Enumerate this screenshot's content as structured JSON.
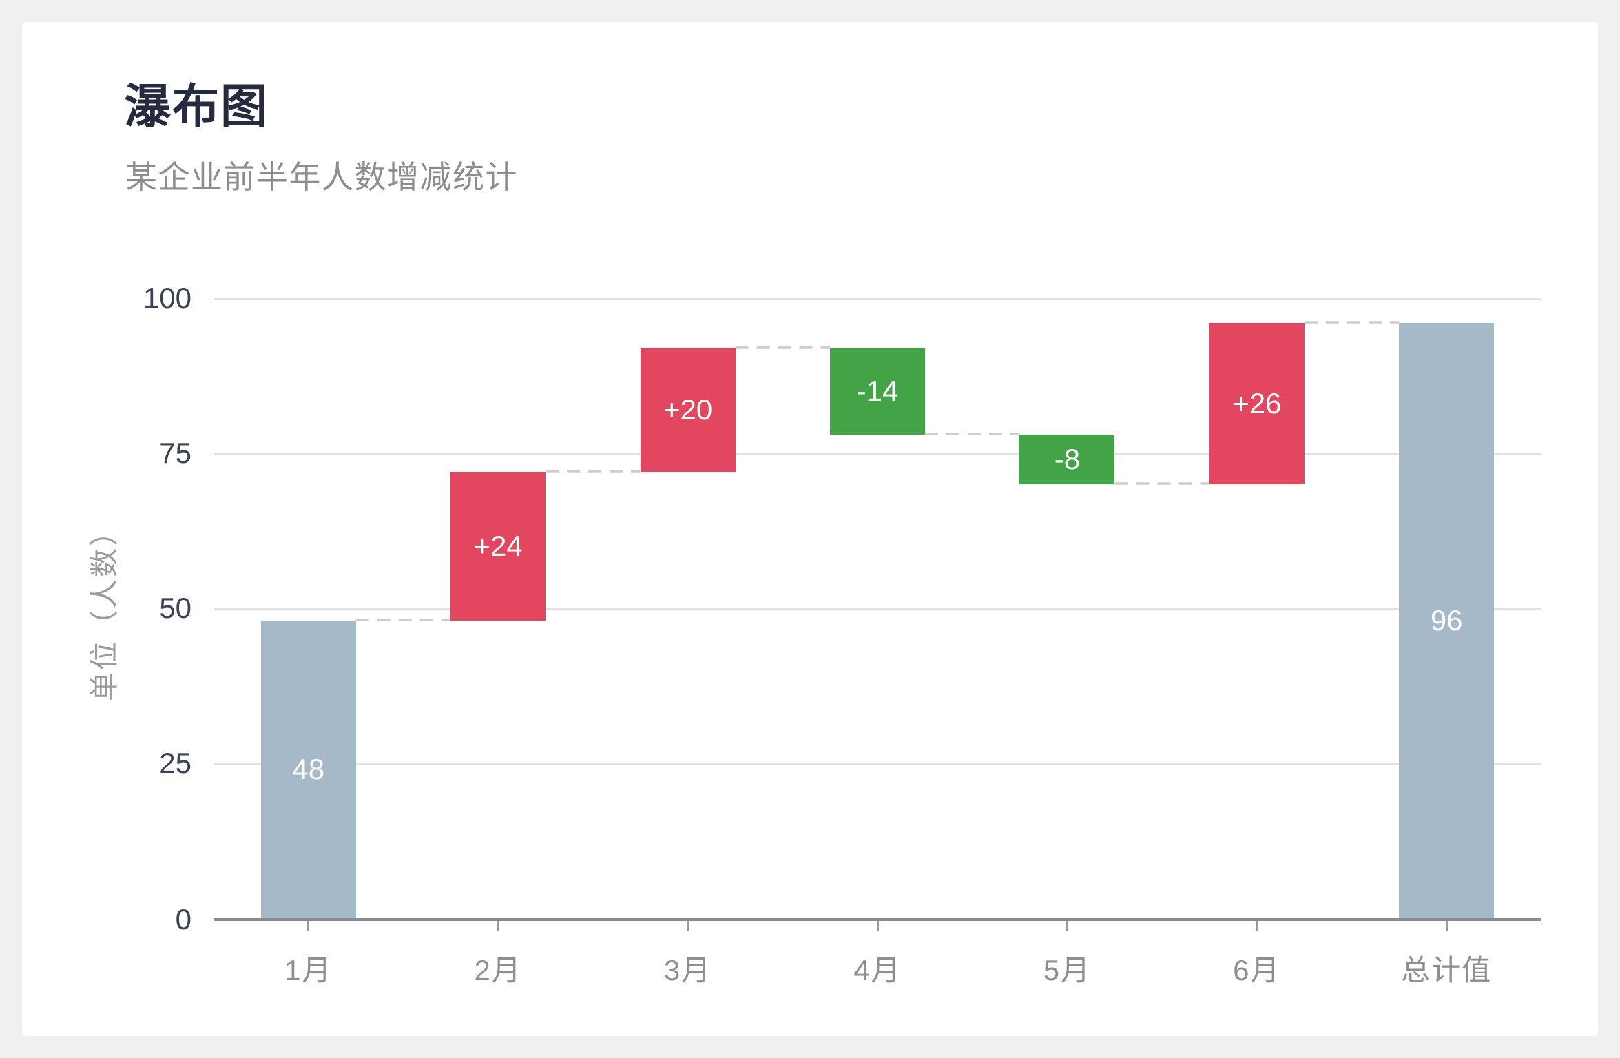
{
  "page": {
    "background": "#eff0f2",
    "card_background": "#ffffff"
  },
  "header": {
    "title": "瀑布图",
    "subtitle": "某企业前半年人数增减统计"
  },
  "chart_data": {
    "type": "bar",
    "subtype": "waterfall",
    "title": "瀑布图",
    "subtitle": "某企业前半年人数增减统计",
    "xlabel": "",
    "ylabel": "单位（人数）",
    "categories": [
      "1月",
      "2月",
      "3月",
      "4月",
      "5月",
      "6月",
      "总计值"
    ],
    "yticks": [
      "0",
      "25",
      "50",
      "75",
      "100"
    ],
    "ytick_values": [
      0,
      25,
      50,
      75,
      100
    ],
    "ylim": [
      0,
      100
    ],
    "grid": true,
    "legend_position": "none",
    "bars": [
      {
        "category": "1月",
        "start": 0,
        "end": 48,
        "delta": 48,
        "label": "48",
        "kind": "total"
      },
      {
        "category": "2月",
        "start": 48,
        "end": 72,
        "delta": 24,
        "label": "+24",
        "kind": "increase"
      },
      {
        "category": "3月",
        "start": 72,
        "end": 92,
        "delta": 20,
        "label": "+20",
        "kind": "increase"
      },
      {
        "category": "4月",
        "start": 92,
        "end": 78,
        "delta": -14,
        "label": "-14",
        "kind": "decrease"
      },
      {
        "category": "5月",
        "start": 78,
        "end": 70,
        "delta": -8,
        "label": "-8",
        "kind": "decrease"
      },
      {
        "category": "6月",
        "start": 70,
        "end": 96,
        "delta": 26,
        "label": "+26",
        "kind": "increase"
      },
      {
        "category": "总计值",
        "start": 0,
        "end": 96,
        "delta": 96,
        "label": "96",
        "kind": "total"
      }
    ],
    "colors": {
      "increase": "#e2475f",
      "decrease": "#43a447",
      "total": "#a6b9c8",
      "bar_label": "#ffffff",
      "grid_line": "#e0e0e2",
      "axis_line": "#8a8a8a",
      "tick_mark": "#9a9a9a",
      "connector": "#cdcdcd",
      "y_tick_label": "#3d4357",
      "x_tick_label": "#8f8f92",
      "axis_title": "#9b9b9e",
      "title": "#262b3f",
      "subtitle": "#8d8d90"
    }
  }
}
